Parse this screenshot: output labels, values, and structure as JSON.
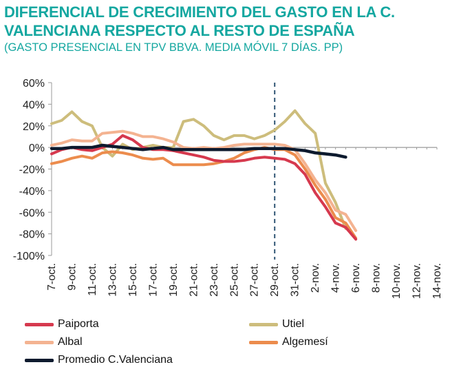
{
  "header": {
    "title": "DIFERENCIAL DE CRECIMIENTO DEL GASTO EN LA C. VALENCIANA RESPECTO AL RESTO DE ESPAÑA",
    "subtitle": "(GASTO PRESENCIAL EN TPV BBVA. MEDIA MÓVIL 7 DÍAS. PP)"
  },
  "chart_data": {
    "type": "line",
    "title": "DIFERENCIAL DE CRECIMIENTO DEL GASTO EN LA C. VALENCIANA RESPECTO AL RESTO DE ESPAÑA",
    "subtitle": "(GASTO PRESENCIAL EN TPV BBVA. MEDIA MÓVIL 7 DÍAS. PP)",
    "x_labels": [
      "7-oct.",
      "9-oct.",
      "11-oct.",
      "13-oct.",
      "15-oct.",
      "17-oct.",
      "19-oct.",
      "21-oct.",
      "23-oct.",
      "25-oct.",
      "27-oct.",
      "29-oct.",
      "31-oct.",
      "2-nov.",
      "4-nov.",
      "6-nov.",
      "8-nov.",
      "10-nov.",
      "12-nov.",
      "14-nov."
    ],
    "y_ticks": [
      "60%",
      "40%",
      "20%",
      "0%",
      "-20%",
      "-40%",
      "-60%",
      "-80%",
      "-100%"
    ],
    "ylim": [
      -100,
      60
    ],
    "y_unit": "%",
    "x_start": "7-oct.",
    "x_count_days": 39,
    "reference_line": "29-oct.",
    "grid": false,
    "legend_position": "bottom",
    "series": [
      {
        "name": "Paiporta",
        "color": "#d6394e",
        "values": [
          -6,
          -2,
          0,
          -2,
          -3,
          0,
          3,
          11,
          7,
          0,
          -2,
          -2,
          -3,
          -5,
          -7,
          -9,
          -12,
          -13,
          -13,
          -12,
          -10,
          -9,
          -10,
          -11,
          -15,
          -25,
          -42,
          -55,
          -70,
          -74,
          -85
        ]
      },
      {
        "name": "Utiel",
        "color": "#cdbd7c",
        "values": [
          22,
          25,
          33,
          24,
          20,
          0,
          -8,
          3,
          -2,
          0,
          2,
          0,
          0,
          24,
          26,
          20,
          11,
          7,
          11,
          11,
          8,
          11,
          16,
          24,
          34,
          22,
          13,
          -33,
          -51,
          -75
        ]
      },
      {
        "name": "Albal",
        "color": "#f4b391",
        "values": [
          2,
          4,
          7,
          6,
          6,
          13,
          14,
          15,
          13,
          10,
          10,
          8,
          5,
          0,
          -1,
          0,
          -1,
          0,
          2,
          3,
          3,
          3,
          3,
          2,
          -2,
          -15,
          -30,
          -42,
          -58,
          -62,
          -77
        ]
      },
      {
        "name": "Algemesí",
        "color": "#ec8c4d",
        "values": [
          -15,
          -13,
          -10,
          -8,
          -10,
          -5,
          -4,
          -5,
          -7,
          -10,
          -11,
          -10,
          -16,
          -16,
          -16,
          -16,
          -15,
          -13,
          -10,
          -5,
          -2,
          0,
          -2,
          -2,
          -7,
          -20,
          -35,
          -48,
          -65,
          -70,
          -84
        ]
      },
      {
        "name": "Promedio C.Valenciana",
        "color": "#0d1a2e",
        "values": [
          -1,
          -1,
          0,
          0,
          0,
          2,
          1,
          0,
          -1,
          -2,
          -1,
          0,
          -2,
          -2,
          -2,
          -2,
          -2,
          -2,
          -2,
          -2,
          -1,
          -1,
          -1,
          -1,
          -2,
          -3,
          -5,
          -6,
          -7,
          -9
        ]
      }
    ]
  }
}
